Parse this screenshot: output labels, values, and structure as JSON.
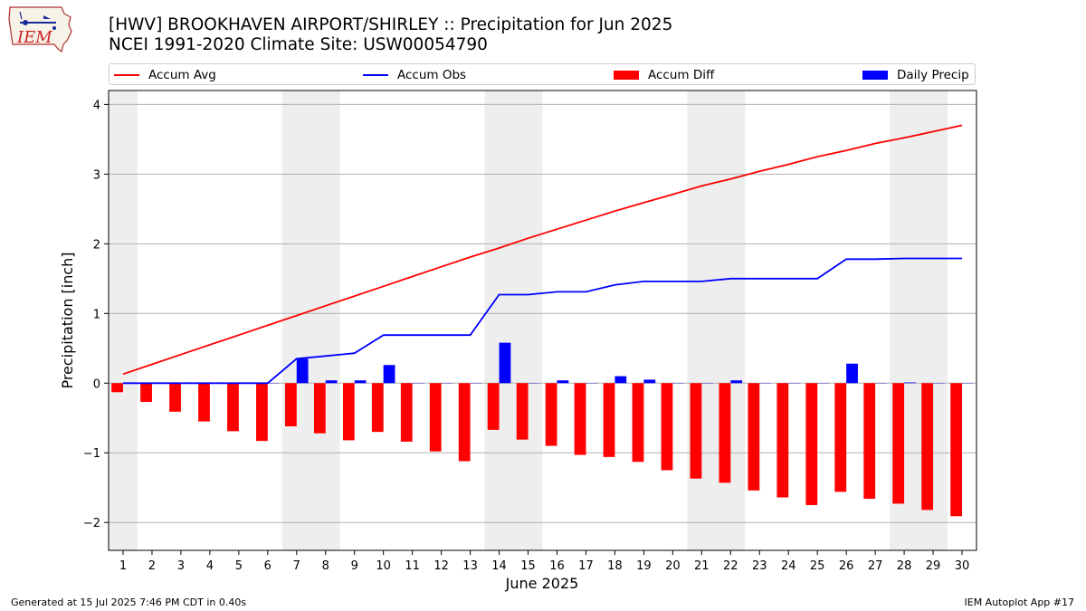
{
  "title": "[HWV] BROOKHAVEN AIRPORT/SHIRLEY :: Precipitation for Jun 2025",
  "subtitle": "NCEI 1991-2020 Climate Site: USW00054790",
  "logo_text": "IEM",
  "footer_left": "Generated at 15 Jul 2025 7:46 PM CDT in 0.40s",
  "footer_right": "IEM Autoplot App #17",
  "colors": {
    "accum_avg": "#ff0000",
    "accum_obs": "#0000ff",
    "accum_diff": "#ff0000",
    "daily_precip": "#0000ff",
    "weekend_band": "#eeeeee",
    "grid": "#b0b0b0"
  },
  "legend": [
    {
      "label": "Accum Avg",
      "kind": "line",
      "color": "#ff0000"
    },
    {
      "label": "Accum Obs",
      "kind": "line",
      "color": "#0000ff"
    },
    {
      "label": "Accum Diff",
      "kind": "box",
      "color": "#ff0000"
    },
    {
      "label": "Daily Precip",
      "kind": "box",
      "color": "#0000ff"
    }
  ],
  "chart_data": {
    "type": "bar",
    "xlabel": "June 2025",
    "ylabel": "Precipitation [inch]",
    "xlim": [
      0.5,
      30.5
    ],
    "ylim": [
      -2.4,
      4.2
    ],
    "yticks": [
      -2,
      -1,
      0,
      1,
      2,
      3,
      4
    ],
    "grid": true,
    "legend_position": "top",
    "days": [
      1,
      2,
      3,
      4,
      5,
      6,
      7,
      8,
      9,
      10,
      11,
      12,
      13,
      14,
      15,
      16,
      17,
      18,
      19,
      20,
      21,
      22,
      23,
      24,
      25,
      26,
      27,
      28,
      29,
      30
    ],
    "weekend_bands": [
      [
        0.5,
        1.5
      ],
      [
        6.5,
        8.5
      ],
      [
        13.5,
        15.5
      ],
      [
        20.5,
        22.5
      ],
      [
        27.5,
        29.5
      ]
    ],
    "series": [
      {
        "name": "Accum Avg",
        "kind": "line",
        "values": [
          0.13,
          0.27,
          0.41,
          0.55,
          0.69,
          0.83,
          0.97,
          1.11,
          1.25,
          1.39,
          1.53,
          1.67,
          1.81,
          1.94,
          2.08,
          2.21,
          2.34,
          2.47,
          2.59,
          2.71,
          2.83,
          2.93,
          3.04,
          3.14,
          3.25,
          3.34,
          3.44,
          3.52,
          3.61,
          3.7
        ]
      },
      {
        "name": "Accum Obs",
        "kind": "line",
        "values": [
          0.0,
          0.0,
          0.0,
          0.0,
          0.0,
          0.0,
          0.35,
          0.39,
          0.43,
          0.69,
          0.69,
          0.69,
          0.69,
          1.27,
          1.27,
          1.31,
          1.31,
          1.41,
          1.46,
          1.46,
          1.46,
          1.5,
          1.5,
          1.5,
          1.5,
          1.78,
          1.78,
          1.79,
          1.79,
          1.79
        ]
      },
      {
        "name": "Accum Diff",
        "kind": "bar",
        "values": [
          -0.13,
          -0.27,
          -0.41,
          -0.55,
          -0.69,
          -0.83,
          -0.62,
          -0.72,
          -0.82,
          -0.7,
          -0.84,
          -0.98,
          -1.12,
          -0.67,
          -0.81,
          -0.9,
          -1.03,
          -1.06,
          -1.13,
          -1.25,
          -1.37,
          -1.43,
          -1.54,
          -1.64,
          -1.75,
          -1.56,
          -1.66,
          -1.73,
          -1.82,
          -1.91
        ]
      },
      {
        "name": "Daily Precip",
        "kind": "bar",
        "values": [
          0.0,
          0.0,
          0.0,
          0.0,
          0.0,
          0.0,
          0.35,
          0.04,
          0.04,
          0.26,
          0.0,
          0.0,
          0.0,
          0.58,
          0.0,
          0.04,
          0.0,
          0.1,
          0.05,
          0.0,
          0.0,
          0.04,
          0.0,
          0.0,
          0.0,
          0.28,
          0.0,
          0.01,
          0.0,
          0.0
        ]
      }
    ]
  }
}
